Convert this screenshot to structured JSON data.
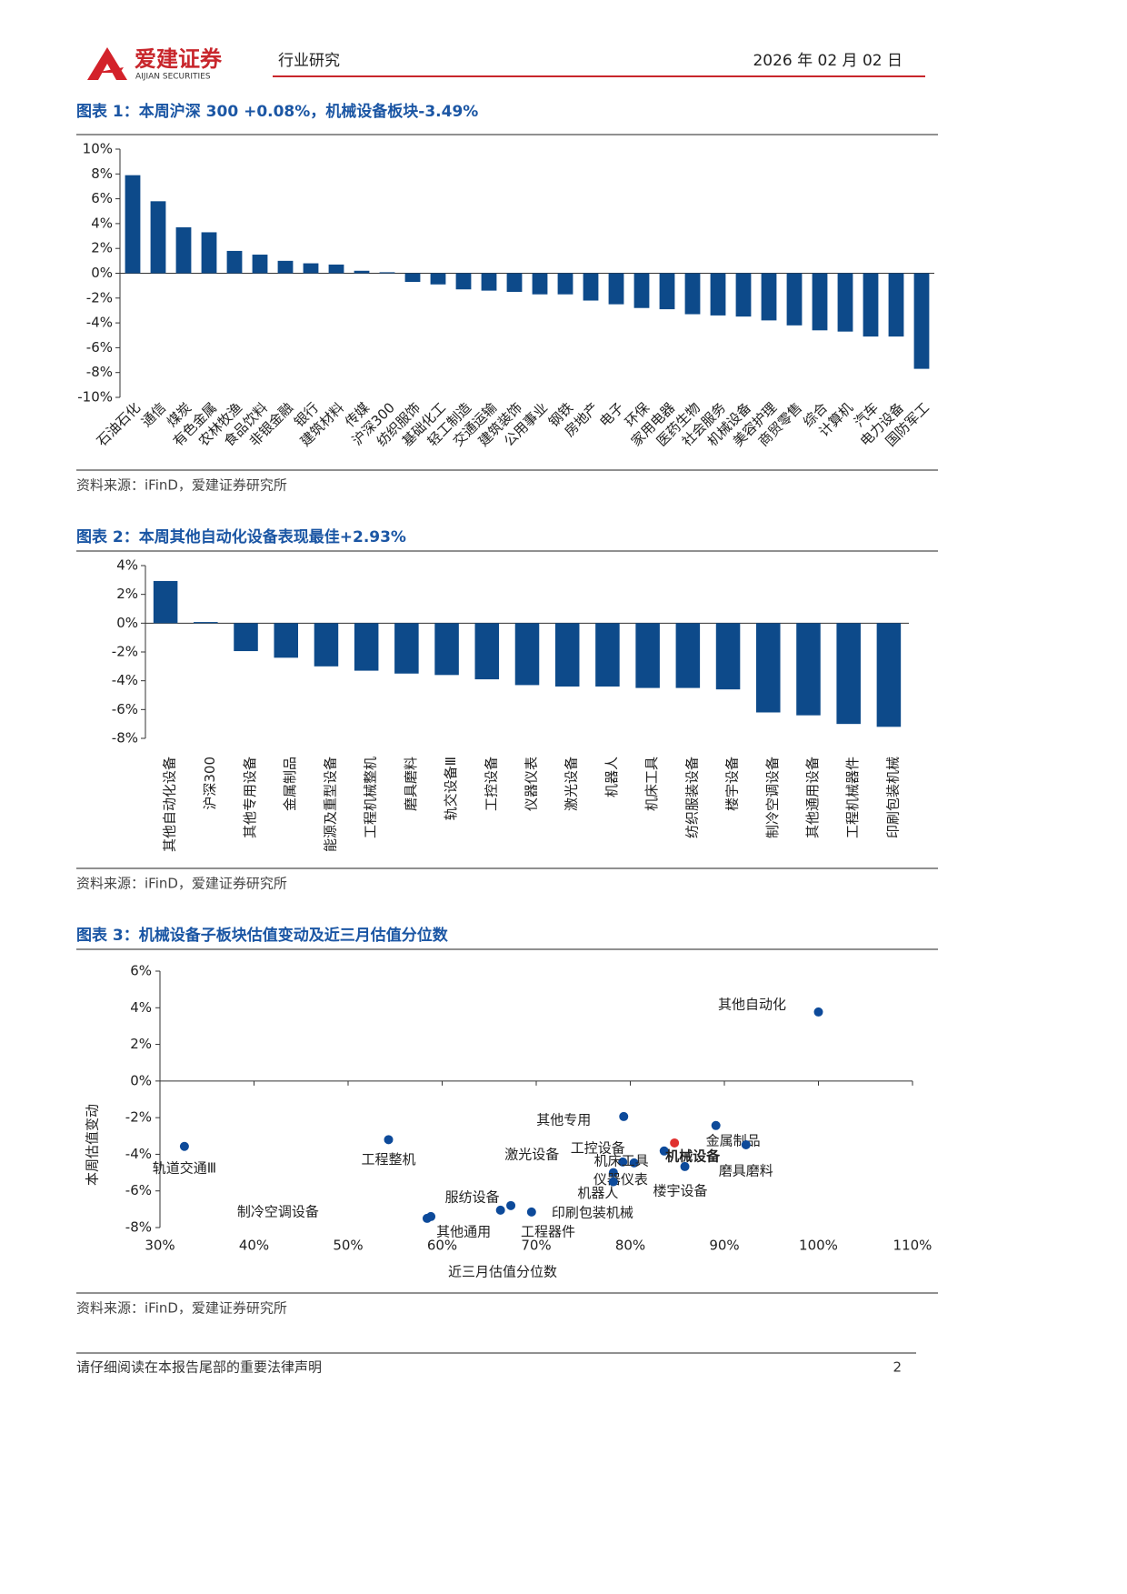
{
  "header": {
    "logo": "爱建证券",
    "logo_en": "AIJIAN SECURITIES",
    "section": "行业研究",
    "date": "2026 年 02 月 02 日"
  },
  "chart_data": [
    {
      "type": "bar",
      "title": "图表 1：本周沪深 300 +0.08%，机械设备板块-3.49%",
      "source": "资料来源：iFinD，爱建证券研究所",
      "color": "#0d4a8a",
      "categories": [
        "石油石化",
        "通信",
        "煤炭",
        "有色金属",
        "农林牧渔",
        "食品饮料",
        "非银金融",
        "银行",
        "建筑材料",
        "传媒",
        "沪深300",
        "纺织服饰",
        "基础化工",
        "轻工制造",
        "交通运输",
        "建筑装饰",
        "公用事业",
        "钢铁",
        "房地产",
        "电子",
        "环保",
        "家用电器",
        "医药生物",
        "社会服务",
        "机械设备",
        "美容护理",
        "商贸零售",
        "综合",
        "计算机",
        "汽车",
        "电力设备",
        "国防军工"
      ],
      "values": [
        7.9,
        5.8,
        3.7,
        3.3,
        1.8,
        1.5,
        1.0,
        0.8,
        0.7,
        0.2,
        0.08,
        -0.7,
        -0.9,
        -1.3,
        -1.4,
        -1.5,
        -1.7,
        -1.7,
        -2.2,
        -2.5,
        -2.8,
        -2.9,
        -3.3,
        -3.4,
        -3.49,
        -3.8,
        -4.2,
        -4.6,
        -4.7,
        -5.1,
        -5.1,
        -7.7
      ],
      "ylim": [
        -10,
        10
      ],
      "yticks": [
        {
          "value": 10,
          "label": "10%"
        },
        {
          "value": 8,
          "label": "8%"
        },
        {
          "value": 6,
          "label": "6%"
        },
        {
          "value": 4,
          "label": "4%"
        },
        {
          "value": 2,
          "label": "2%"
        },
        {
          "value": 0,
          "label": "0%"
        },
        {
          "value": -2,
          "label": "-2%"
        },
        {
          "value": -4,
          "label": "-4%"
        },
        {
          "value": -6,
          "label": "-6%"
        },
        {
          "value": -8,
          "label": "-8%"
        },
        {
          "value": -10,
          "label": "-10%"
        }
      ]
    },
    {
      "type": "bar",
      "title": "图表 2：本周其他自动化设备表现最佳+2.93%",
      "source": "资料来源：iFinD，爱建证券研究所",
      "color": "#0d4a8a",
      "categories": [
        "其他自动化设备",
        "沪深300",
        "其他专用设备",
        "金属制品",
        "能源及重型设备",
        "工程机械整机",
        "磨具磨料",
        "轨交设备Ⅲ",
        "工控设备",
        "仪器仪表",
        "激光设备",
        "机器人",
        "机床工具",
        "纺织服装设备",
        "楼宇设备",
        "制冷空调设备",
        "其他通用设备",
        "工程机械器件",
        "印刷包装机械"
      ],
      "values": [
        2.93,
        0.08,
        -1.94,
        -2.4,
        -3.0,
        -3.3,
        -3.5,
        -3.6,
        -3.9,
        -4.3,
        -4.4,
        -4.4,
        -4.5,
        -4.5,
        -4.6,
        -6.2,
        -6.4,
        -7.0,
        -7.2
      ],
      "ylim": [
        -8,
        4
      ],
      "yticks": [
        {
          "value": 4,
          "label": "4%"
        },
        {
          "value": 2,
          "label": "2%"
        },
        {
          "value": 0,
          "label": "0%"
        },
        {
          "value": -2,
          "label": "-2%"
        },
        {
          "value": -4,
          "label": "-4%"
        },
        {
          "value": -6,
          "label": "-6%"
        },
        {
          "value": -8,
          "label": "-8%"
        }
      ]
    },
    {
      "type": "scatter",
      "title": "图表 3：机械设备子板块估值变动及近三月估值分位数",
      "source": "资料来源：iFinD，爱建证券研究所",
      "xlabel": "近三月估值分位数",
      "ylabel": "本周估值变动",
      "labels": [
        "其他自动化",
        "轨道交通Ⅲ",
        "工程整机",
        "制冷空调设备",
        "其他通用",
        "服纺设备",
        "工程器件",
        "印刷包装机械",
        "其他专用",
        "激光设备",
        "工控设备",
        "机床工具",
        "仪器仪表",
        "机器人",
        "机械设备",
        "金属制品",
        "磨具磨料",
        "楼宇设备"
      ],
      "x": [
        100.0,
        32.6,
        54.3,
        58.4,
        58.8,
        66.2,
        67.3,
        69.5,
        79.3,
        79.2,
        83.6,
        80.4,
        78.2,
        78.2,
        84.7,
        89.1,
        92.3,
        85.8
      ],
      "y": [
        3.77,
        -3.57,
        -3.2,
        -7.5,
        -7.4,
        -7.05,
        -6.8,
        -7.15,
        -1.94,
        -4.42,
        -3.82,
        -4.47,
        -5.0,
        -5.5,
        -3.38,
        -2.43,
        -3.48,
        -4.67
      ],
      "colors": [
        "#0d4a9a",
        "#0d4a9a",
        "#0d4a9a",
        "#0d4a9a",
        "#0d4a9a",
        "#0d4a9a",
        "#0d4a9a",
        "#0d4a9a",
        "#0d4a9a",
        "#0d4a9a",
        "#0d4a9a",
        "#0d4a9a",
        "#0d4a9a",
        "#0d4a9a",
        "#e0302e",
        "#0d4a9a",
        "#0d4a9a",
        "#0d4a9a"
      ],
      "xlim": [
        30,
        110
      ],
      "ylim": [
        -8,
        6
      ],
      "xticks": [
        {
          "value": 30,
          "label": "30%"
        },
        {
          "value": 40,
          "label": "40%"
        },
        {
          "value": 50,
          "label": "50%"
        },
        {
          "value": 60,
          "label": "60%"
        },
        {
          "value": 70,
          "label": "70%"
        },
        {
          "value": 80,
          "label": "80%"
        },
        {
          "value": 90,
          "label": "90%"
        },
        {
          "value": 100,
          "label": "100%"
        },
        {
          "value": 110,
          "label": "110%"
        }
      ],
      "yticks": [
        {
          "value": 6,
          "label": "6%"
        },
        {
          "value": 4,
          "label": "4%"
        },
        {
          "value": 2,
          "label": "2%"
        },
        {
          "value": 0,
          "label": "0%"
        },
        {
          "value": -2,
          "label": "-2%"
        },
        {
          "value": -4,
          "label": "-4%"
        },
        {
          "value": -6,
          "label": "-6%"
        },
        {
          "value": -8,
          "label": "-8%"
        }
      ]
    }
  ],
  "footer": {
    "note": "请仔细阅读在本报告尾部的重要法律声明",
    "page": "2"
  }
}
